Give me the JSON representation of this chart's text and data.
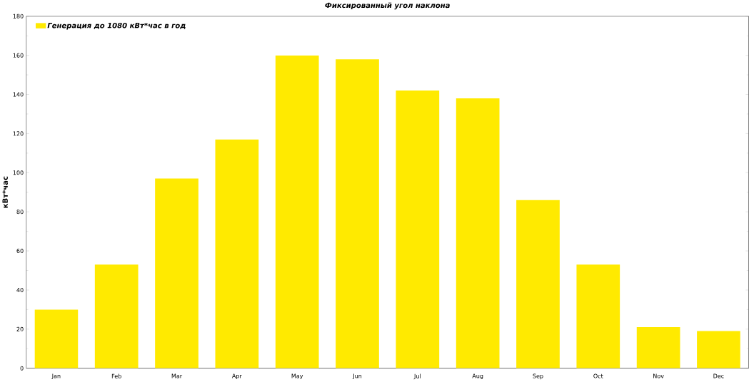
{
  "chart_data": {
    "type": "bar",
    "title": "Фиксированный угол наклона",
    "ylabel": "кВт*час",
    "categories": [
      "Jan",
      "Feb",
      "Mar",
      "Apr",
      "May",
      "Jun",
      "Jul",
      "Aug",
      "Sep",
      "Oct",
      "Nov",
      "Dec"
    ],
    "series": [
      {
        "name": "Генерация до 1080 кВт*час в год",
        "color": "#ffea00",
        "values": [
          30,
          53,
          97,
          117,
          160,
          158,
          142,
          138,
          86,
          53,
          21,
          19
        ]
      }
    ],
    "ylim": [
      0,
      180
    ],
    "yticks": [
      0,
      20,
      40,
      60,
      80,
      100,
      120,
      140,
      160,
      180
    ],
    "legend": "top left",
    "grid": false
  }
}
